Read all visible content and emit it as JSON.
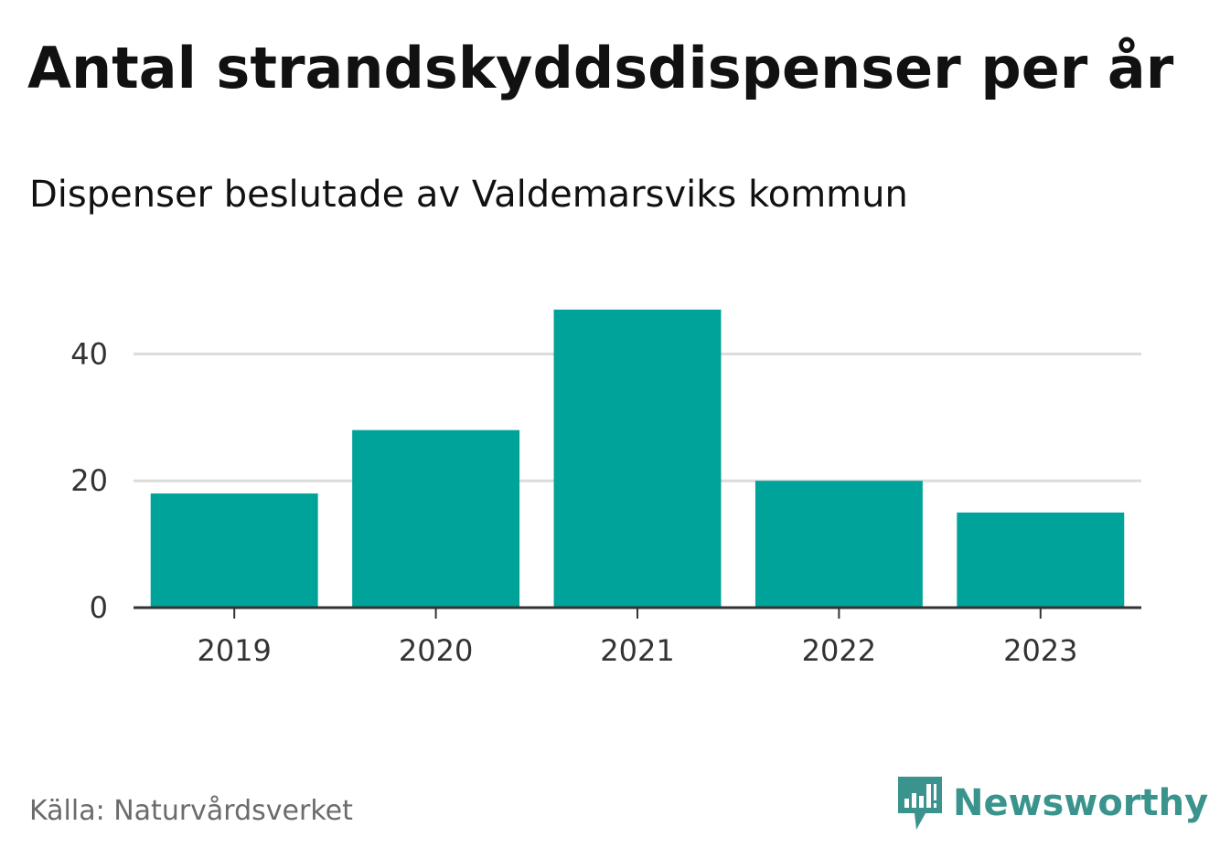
{
  "title": "Antal strandskyddsdispenser per år",
  "subtitle": "Dispenser beslutade av Valdemarsviks kommun",
  "source": "Källa: Naturvårdsverket",
  "brand": {
    "name": "Newsworthy",
    "logo_icon": "newsworthy-bar-chart-icon",
    "color": "#3a948d"
  },
  "chart_data": {
    "type": "bar",
    "categories": [
      "2019",
      "2020",
      "2021",
      "2022",
      "2023"
    ],
    "values": [
      18,
      28,
      47,
      20,
      15
    ],
    "title": "",
    "xlabel": "",
    "ylabel": "",
    "ylim": [
      0,
      50
    ],
    "yticks": [
      0,
      20,
      40
    ],
    "grid": true,
    "bar_color": "#00a39a"
  }
}
